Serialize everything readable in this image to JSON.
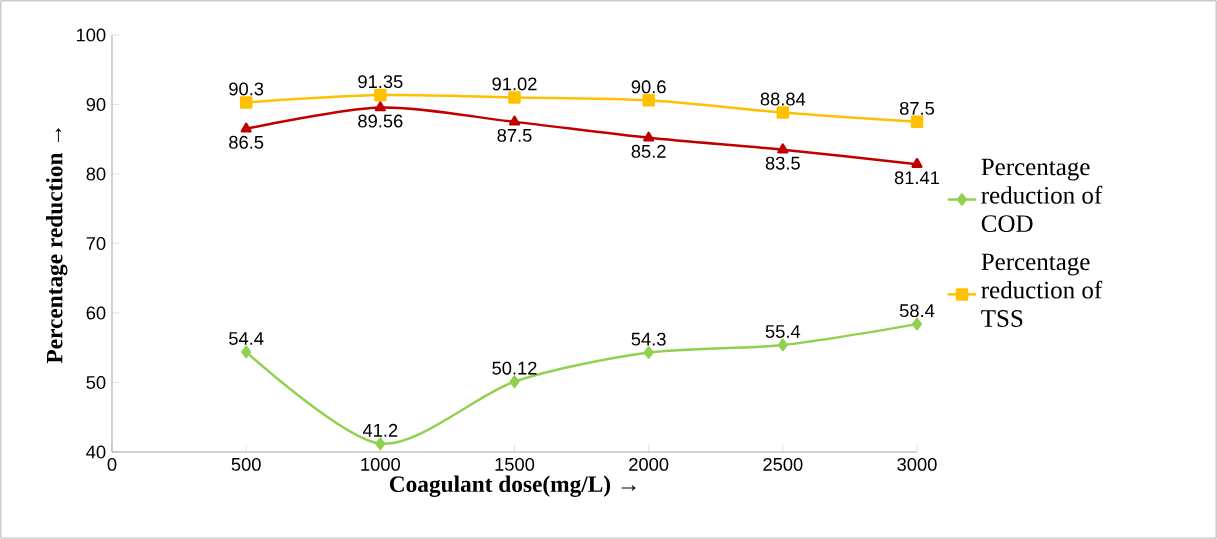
{
  "chart_data": {
    "type": "line",
    "xlabel": "Coagulant dose(mg/L) →",
    "ylabel": "Percentage reduction →",
    "x": [
      500,
      1000,
      1500,
      2000,
      2500,
      3000
    ],
    "series": [
      {
        "name": "Percentage reduction of COD",
        "color": "#92d050",
        "marker": "diamond",
        "values": [
          54.4,
          41.2,
          50.12,
          54.3,
          55.4,
          58.4
        ]
      },
      {
        "name": "Percentage reduction of TSS",
        "color": "#ffc000",
        "marker": "square",
        "values": [
          90.3,
          91.35,
          91.02,
          90.6,
          88.84,
          87.5
        ]
      },
      {
        "color": "#c00000",
        "marker": "triangle",
        "values": [
          86.5,
          89.56,
          87.5,
          85.2,
          83.5,
          81.41
        ]
      }
    ],
    "xlim": [
      0,
      3000
    ],
    "xticks": [
      0,
      500,
      1000,
      1500,
      2000,
      2500,
      3000
    ],
    "ylim": [
      40,
      100
    ],
    "yticks": [
      40,
      50,
      60,
      70,
      80,
      90,
      100
    ],
    "data_labels": true,
    "legend": "right",
    "grid": false
  }
}
